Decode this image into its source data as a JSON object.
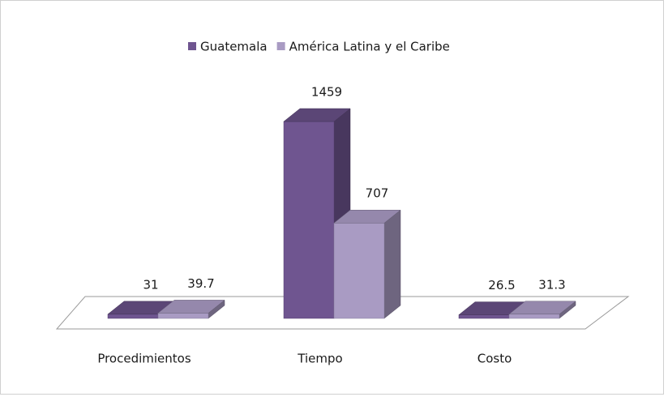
{
  "chart_data": {
    "type": "bar3d",
    "categories": [
      "Procedimientos",
      "Tiempo",
      "Costo"
    ],
    "series": [
      {
        "name": "Guatemala",
        "color": "#6f5590",
        "values": [
          31,
          1459,
          26.5
        ]
      },
      {
        "name": "América Latina y el Caribe",
        "color": "#a99bc3",
        "values": [
          39.7,
          707,
          31.3
        ]
      }
    ],
    "legend": "top"
  }
}
